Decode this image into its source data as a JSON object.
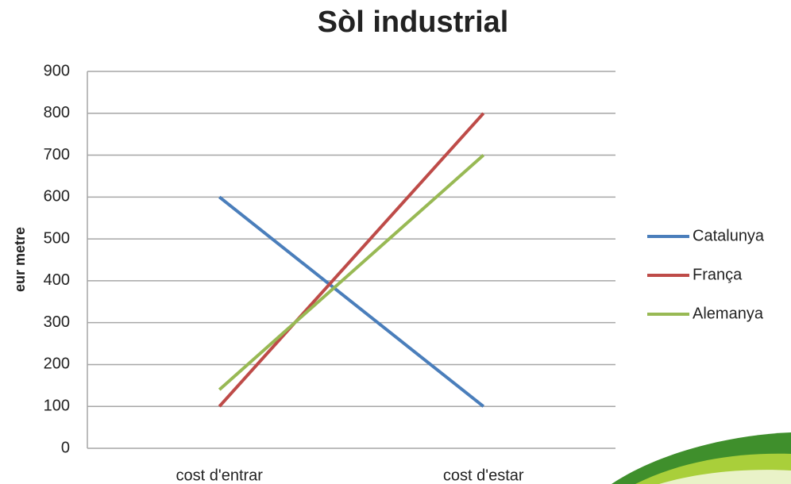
{
  "chart_data": {
    "type": "line",
    "title": "Sòl industrial",
    "y_label": "eur metre",
    "categories": [
      "cost d'entrar",
      "cost d'estar"
    ],
    "series": [
      {
        "name": "Catalunya",
        "color": "#4a7ebb",
        "values": [
          600,
          100
        ]
      },
      {
        "name": "França",
        "color": "#be4b48",
        "values": [
          100,
          800
        ]
      },
      {
        "name": "Alemanya",
        "color": "#98b954",
        "values": [
          140,
          700
        ]
      }
    ],
    "ylim": [
      0,
      900
    ],
    "yticks": [
      0,
      100,
      200,
      300,
      400,
      500,
      600,
      700,
      800,
      900
    ],
    "grid": true,
    "legend": "right"
  }
}
